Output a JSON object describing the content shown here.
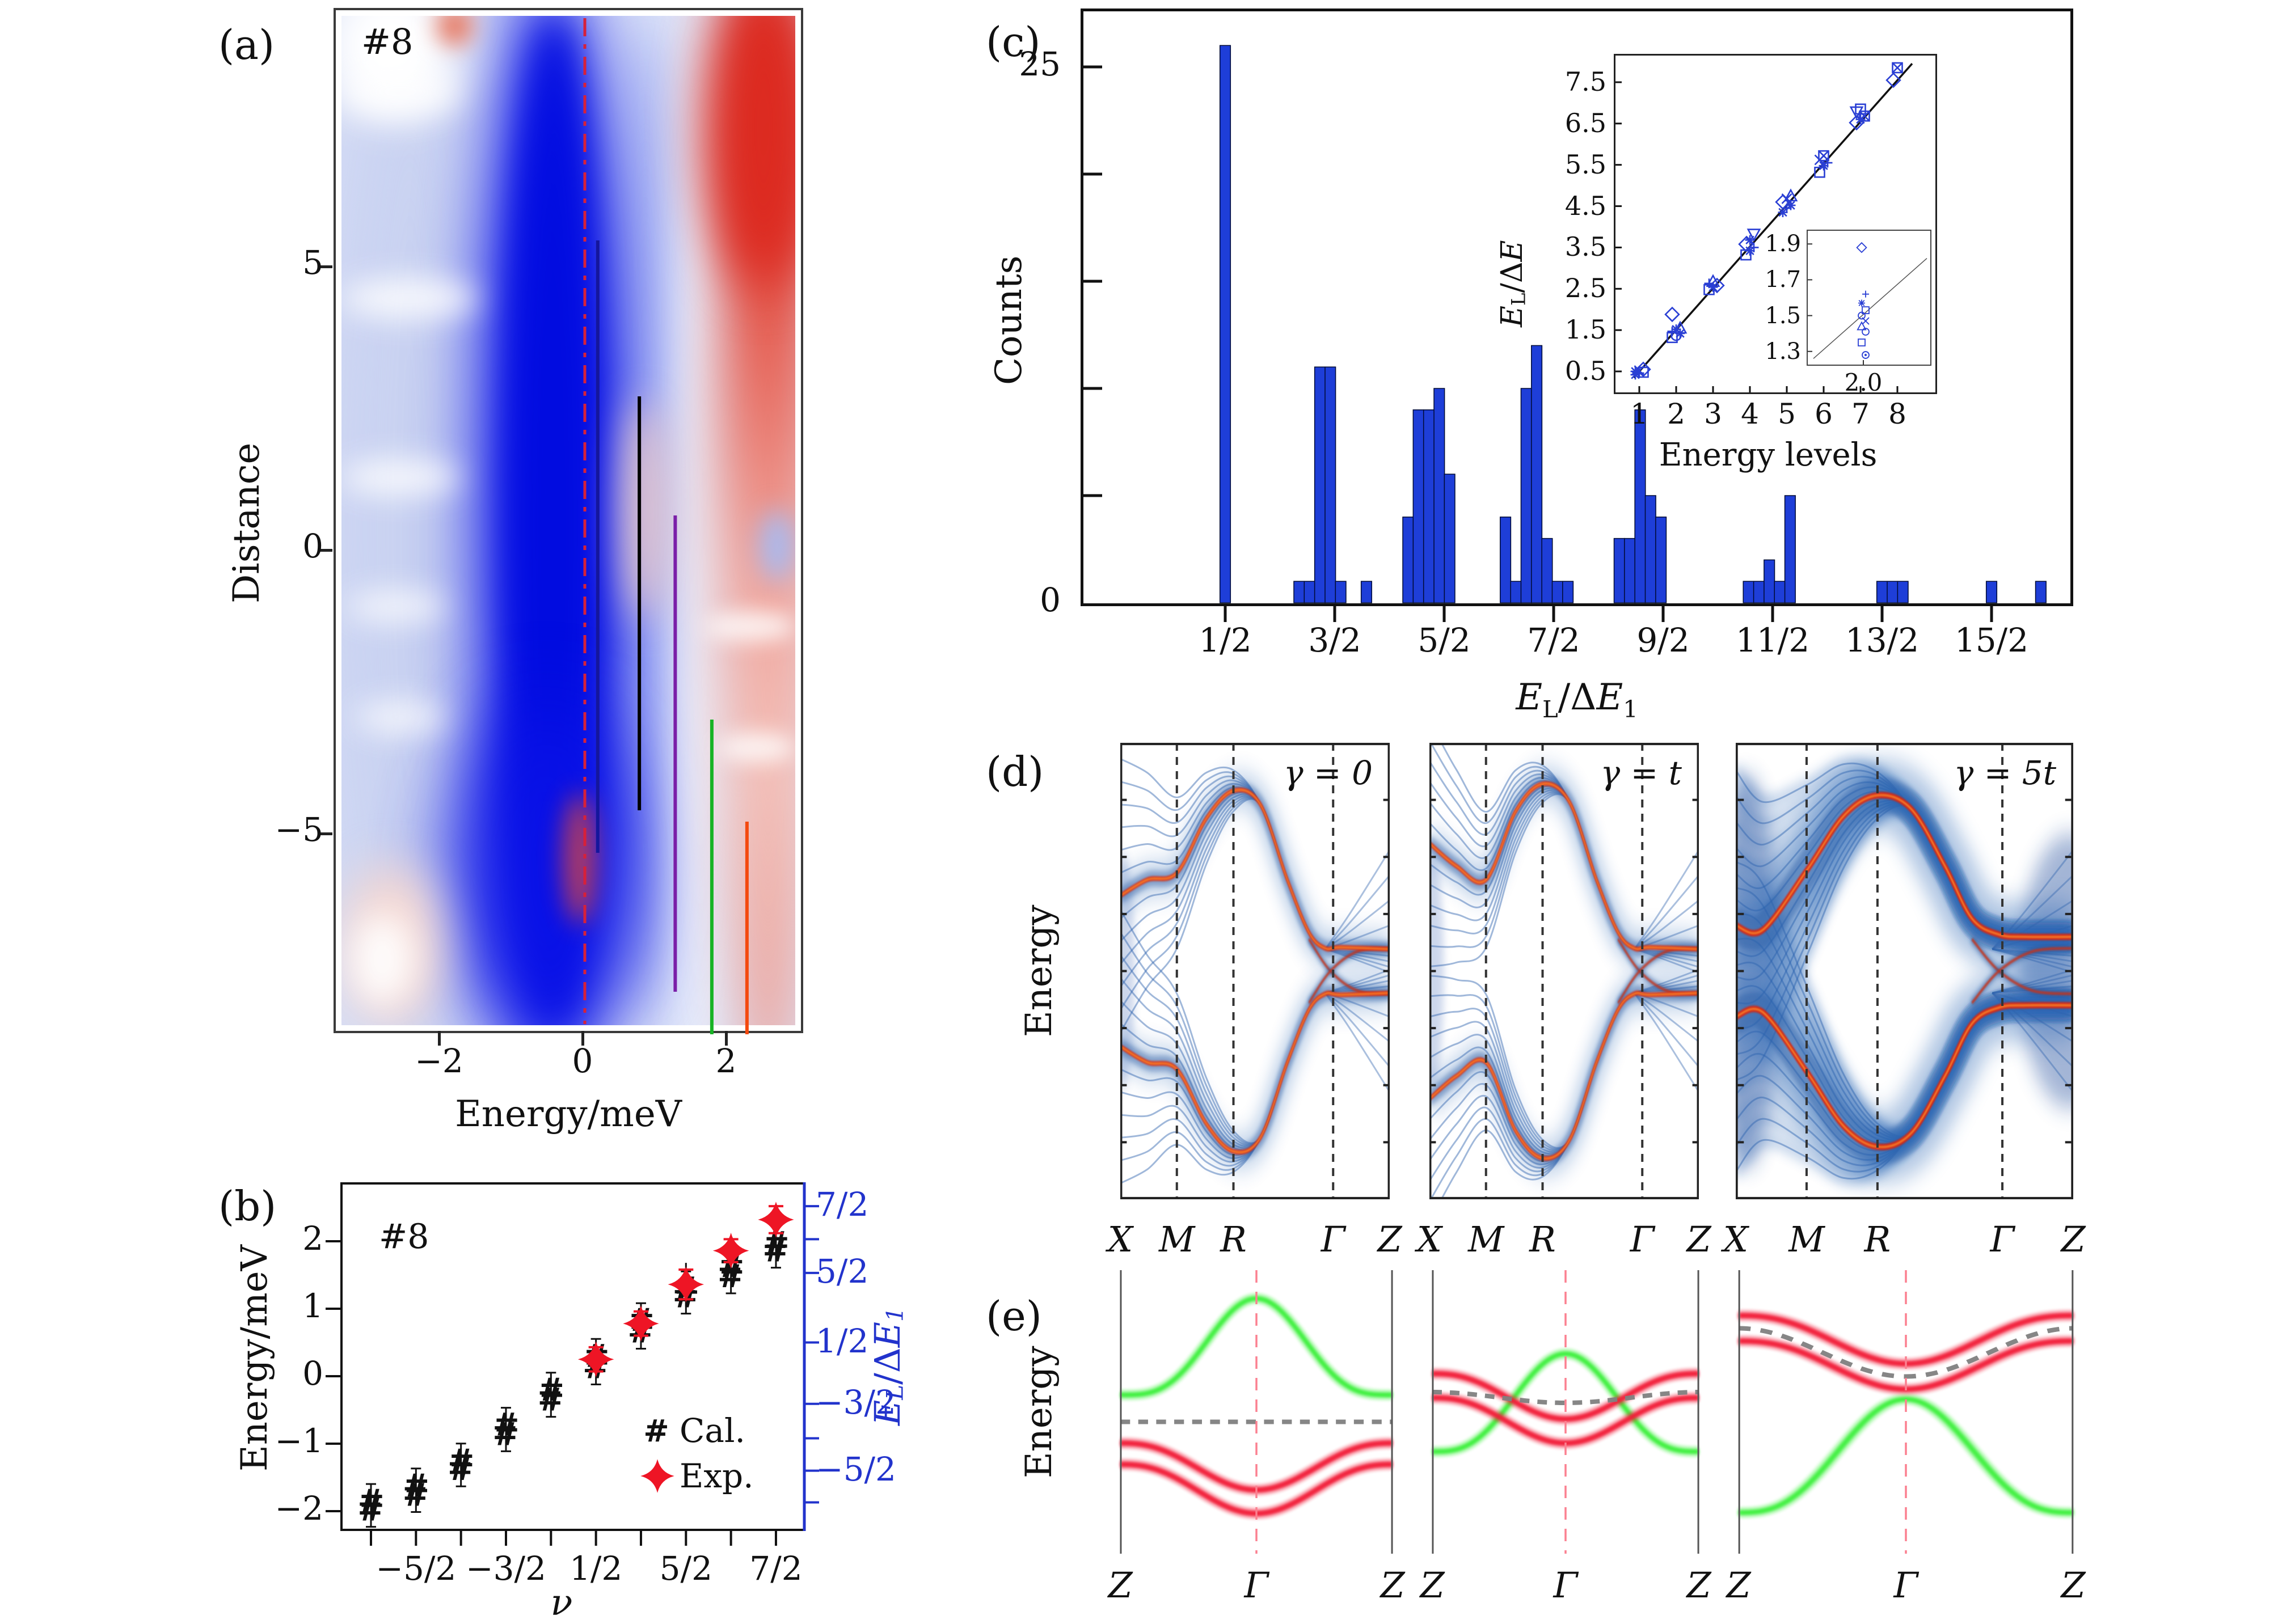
{
  "panels": {
    "a": {
      "label": "(a)",
      "tag": "#8",
      "xlabel": "Energy/meV",
      "ylabel": "Distance"
    },
    "b": {
      "label": "(b)",
      "tag": "#8",
      "xlabel": "ν",
      "ylabel": "Energy/meV",
      "legend": {
        "cal": "Cal.",
        "exp": "Exp."
      },
      "right_label": {
        "e1": "E",
        "s1": "L",
        "mid": "/Δ",
        "e2": "E",
        "s2": "1"
      }
    },
    "c": {
      "label": "(c)",
      "ylabel": "Counts",
      "xlabel": {
        "e1": "E",
        "s1": "L",
        "mid": "/Δ",
        "e2": "E",
        "s2": "1"
      },
      "inset": {
        "ylabel": {
          "e1": "E",
          "s1": "L",
          "mid": "/Δ",
          "e2": "E"
        },
        "xlabel": "Energy levels"
      }
    },
    "d": {
      "label": "(d)",
      "ylabel": "Energy",
      "gammas": [
        "γ = 0",
        "γ = t",
        "γ = 5t"
      ]
    },
    "e": {
      "label": "(e)",
      "ylabel": "Energy"
    }
  },
  "chart_data": [
    {
      "id": "a",
      "type": "heatmap",
      "panel_label": "(a)",
      "sample": "#8",
      "xlabel": "Energy/meV",
      "ylabel": "Distance",
      "xlim": [
        -3.4,
        3.07
      ],
      "ylim": [
        -8.5,
        9.6
      ],
      "xticks": [
        "−2",
        "0",
        "2"
      ],
      "xtick_vals": [
        -2,
        0,
        2
      ],
      "yticks": [
        "5",
        "0",
        "−5"
      ],
      "ytick_vals": [
        5,
        0,
        -5
      ],
      "colormap": "blue-white-red",
      "fermi_line": {
        "x": 0,
        "style": "dash-dot",
        "color": "#d6213a"
      },
      "level_lines": [
        {
          "x": 0.18,
          "y_top": 5.5,
          "y_bottom": -5.3,
          "color": "#15169c"
        },
        {
          "x": 0.76,
          "y_top": 2.75,
          "y_bottom": -4.55,
          "color": "#000000"
        },
        {
          "x": 1.26,
          "y_top": 0.65,
          "y_bottom": -7.75,
          "color": "#7a1fa8"
        },
        {
          "x": 1.77,
          "y_top": -2.95,
          "y_bottom": -8.5,
          "color": "#17b325"
        },
        {
          "x": 2.26,
          "y_top": -4.75,
          "y_bottom": -8.5,
          "color": "#f4490e"
        }
      ]
    },
    {
      "id": "b",
      "type": "scatter",
      "panel_label": "(b)",
      "sample": "#8",
      "xlabel": "ν",
      "ylabel": "Energy/meV",
      "right_ylabel": "EL/ΔE1",
      "ylim": [
        -2.35,
        2.75
      ],
      "yticks": [
        "2",
        "1",
        "0",
        "−1",
        "−2"
      ],
      "ytick_vals": [
        2,
        1,
        0,
        -1,
        -2
      ],
      "x_tick_count": 10,
      "x_labels": [
        {
          "text": "−5/2",
          "tick": 2
        },
        {
          "text": "−3/2",
          "tick": 4
        },
        {
          "text": "1/2",
          "tick": 6
        },
        {
          "text": "5/2",
          "tick": 8
        },
        {
          "text": "7/2",
          "tick": 10
        }
      ],
      "cal": {
        "name": "Cal.",
        "marker": "#",
        "color": "#111111",
        "pairs": [
          [
            -1.85,
            -1.98
          ],
          [
            -1.62,
            -1.76
          ],
          [
            -1.25,
            -1.38
          ],
          [
            -0.72,
            -0.86
          ],
          [
            -0.2,
            -0.35
          ],
          [
            0.13,
            0.3
          ],
          [
            0.66,
            0.83
          ],
          [
            1.18,
            1.3
          ],
          [
            1.48,
            1.63
          ],
          [
            1.86,
            1.97
          ]
        ]
      },
      "exp": {
        "name": "Exp.",
        "marker": "star4",
        "color": "#ee1525",
        "points": [
          {
            "tick": 6,
            "E": 0.25,
            "err": 0.18
          },
          {
            "tick": 7,
            "E": 0.78,
            "err": 0.18
          },
          {
            "tick": 8,
            "E": 1.36,
            "err": 0.22
          },
          {
            "tick": 9,
            "E": 1.86,
            "err": 0.17
          },
          {
            "tick": 10,
            "E": 2.32,
            "err": 0.2
          }
        ]
      },
      "cal_outlier_errbar": {
        "tick": 8,
        "from": 1.03,
        "to": 1.68
      },
      "right_ticks": [
        {
          "label": "7/2",
          "E": 2.52
        },
        {
          "label": "",
          "E": 2.03
        },
        {
          "label": "5/2",
          "E": 1.53
        },
        {
          "label": "1/2",
          "E": 0.5
        },
        {
          "label": "−3/2",
          "E": -0.41
        },
        {
          "label": "",
          "E": -0.92
        },
        {
          "label": "−5/2",
          "E": -1.4
        },
        {
          "label": "",
          "E": -1.87
        }
      ],
      "right_axis_color": "#2233cc"
    },
    {
      "id": "c",
      "type": "bar",
      "panel_label": "(c)",
      "ylabel": "Counts",
      "xlabel": "EL/ΔE1",
      "xlim": [
        -0.82,
        8.25
      ],
      "ylim": [
        0,
        27.8
      ],
      "yticks": [
        0,
        5,
        10,
        15,
        20,
        25
      ],
      "ytick_labels_shown": [
        "25",
        "0"
      ],
      "xticks": [
        0.5,
        1.5,
        2.5,
        3.5,
        4.5,
        5.5,
        6.5,
        7.5
      ],
      "xtick_labels": [
        "1/2",
        "3/2",
        "5/2",
        "7/2",
        "9/2",
        "11/2",
        "13/2",
        "15/2"
      ],
      "bar_width": 0.095,
      "bar_color": "#1e3ed8",
      "bars": [
        [
          0.5,
          26
        ],
        [
          1.175,
          1
        ],
        [
          1.27,
          1
        ],
        [
          1.365,
          11
        ],
        [
          1.46,
          11
        ],
        [
          1.555,
          1
        ],
        [
          1.79,
          1
        ],
        [
          2.17,
          4
        ],
        [
          2.265,
          9
        ],
        [
          2.36,
          9
        ],
        [
          2.455,
          10
        ],
        [
          2.55,
          6
        ],
        [
          3.06,
          4
        ],
        [
          3.155,
          1
        ],
        [
          3.25,
          10
        ],
        [
          3.345,
          12
        ],
        [
          3.44,
          3
        ],
        [
          3.535,
          1
        ],
        [
          3.63,
          1
        ],
        [
          4.1,
          3
        ],
        [
          4.195,
          3
        ],
        [
          4.29,
          9
        ],
        [
          4.385,
          5
        ],
        [
          4.48,
          4
        ],
        [
          5.28,
          1
        ],
        [
          5.375,
          1
        ],
        [
          5.47,
          2
        ],
        [
          5.565,
          1
        ],
        [
          5.66,
          5
        ],
        [
          6.5,
          1
        ],
        [
          6.595,
          1
        ],
        [
          6.69,
          1
        ],
        [
          7.5,
          1
        ],
        [
          7.95,
          1
        ]
      ],
      "inset": {
        "xlabel": "Energy levels",
        "ylabel": "EL/ΔE",
        "xticks": [
          1,
          2,
          3,
          4,
          5,
          6,
          7,
          8
        ],
        "yticks": [
          7.5,
          6.5,
          5.5,
          4.5,
          3.5,
          2.5,
          1.5,
          0.5
        ],
        "fit_line": {
          "x1": 0.85,
          "y1": 0.35,
          "x2": 8.4,
          "y2": 7.95
        },
        "marker_color": "#2a3fd4",
        "clusters": [
          {
            "x": 1,
            "points": [
              [
                0.42,
                "st"
              ],
              [
                0.46,
                "cr"
              ],
              [
                0.48,
                "sq"
              ],
              [
                0.5,
                "st"
              ],
              [
                0.52,
                "x"
              ],
              [
                0.55,
                "di"
              ]
            ]
          },
          {
            "x": 2,
            "points": [
              [
                1.32,
                "sq"
              ],
              [
                1.37,
                "ci"
              ],
              [
                1.42,
                "st"
              ],
              [
                1.47,
                "cr"
              ],
              [
                1.52,
                "st"
              ],
              [
                1.55,
                "tu"
              ],
              [
                1.88,
                "di"
              ]
            ]
          },
          {
            "x": 3,
            "points": [
              [
                2.48,
                "sq"
              ],
              [
                2.54,
                "st"
              ],
              [
                2.58,
                "di"
              ],
              [
                2.63,
                "cr"
              ],
              [
                2.68,
                "tu"
              ]
            ]
          },
          {
            "x": 4,
            "points": [
              [
                3.32,
                "sq"
              ],
              [
                3.42,
                "st"
              ],
              [
                3.5,
                "cr"
              ],
              [
                3.58,
                "di"
              ],
              [
                3.68,
                "st"
              ],
              [
                3.82,
                "td"
              ]
            ]
          },
          {
            "x": 5,
            "points": [
              [
                4.35,
                "st"
              ],
              [
                4.45,
                "cr"
              ],
              [
                4.52,
                "st"
              ],
              [
                4.6,
                "di"
              ],
              [
                4.68,
                "x"
              ],
              [
                4.75,
                "tu"
              ]
            ]
          },
          {
            "x": 6,
            "points": [
              [
                5.32,
                "sq"
              ],
              [
                5.48,
                "st"
              ],
              [
                5.55,
                "cr"
              ],
              [
                5.62,
                "x"
              ],
              [
                5.72,
                "bx"
              ]
            ]
          },
          {
            "x": 7,
            "points": [
              [
                6.52,
                "di"
              ],
              [
                6.6,
                "st"
              ],
              [
                6.68,
                "bx"
              ],
              [
                6.78,
                "td"
              ],
              [
                6.85,
                "sq"
              ]
            ]
          },
          {
            "x": 8,
            "points": [
              [
                7.55,
                "di"
              ],
              [
                7.85,
                "bx"
              ]
            ]
          }
        ],
        "subinset": {
          "xtick_label": "2.0",
          "yticks": [
            1.9,
            1.7,
            1.5,
            1.3
          ],
          "xlim": [
            1.75,
            2.3
          ],
          "ylim": [
            1.22,
            1.98
          ],
          "line": {
            "x1": 1.78,
            "y1": 1.26,
            "x2": 2.28,
            "y2": 1.82
          },
          "points": [
            [
              1.88,
              "di"
            ],
            [
              1.62,
              "cr"
            ],
            [
              1.57,
              "st"
            ],
            [
              1.53,
              "sq"
            ],
            [
              1.5,
              "ci"
            ],
            [
              1.47,
              "x"
            ],
            [
              1.44,
              "tu"
            ],
            [
              1.41,
              "ci"
            ],
            [
              1.35,
              "sq"
            ],
            [
              1.28,
              "cd"
            ]
          ]
        }
      }
    },
    {
      "id": "d",
      "type": "spectral_function",
      "panel_label": "(d)",
      "ylabel": "Energy",
      "kpoints": [
        "X",
        "M",
        "R",
        "Γ",
        "Z"
      ],
      "kpoint_fracs": [
        0,
        0.21,
        0.42,
        0.79,
        1
      ],
      "panels": [
        {
          "gamma": "γ = 0",
          "band_upper": [
            [
              0,
              0.335
            ],
            [
              0.1,
              0.3
            ],
            [
              0.21,
              0.285
            ],
            [
              0.32,
              0.165
            ],
            [
              0.42,
              0.105
            ],
            [
              0.52,
              0.135
            ],
            [
              0.62,
              0.3
            ],
            [
              0.7,
              0.415
            ],
            [
              0.76,
              0.45
            ],
            [
              0.82,
              0.448
            ],
            [
              1,
              0.452
            ]
          ],
          "fan_spread": 0.3,
          "cloud": 0.33
        },
        {
          "gamma": "γ = t",
          "band_upper": [
            [
              0,
              0.22
            ],
            [
              0.1,
              0.27
            ],
            [
              0.21,
              0.3
            ],
            [
              0.32,
              0.15
            ],
            [
              0.42,
              0.09
            ],
            [
              0.52,
              0.13
            ],
            [
              0.62,
              0.3
            ],
            [
              0.7,
              0.415
            ],
            [
              0.76,
              0.45
            ],
            [
              0.82,
              0.448
            ],
            [
              1,
              0.452
            ]
          ],
          "fan_spread": 0.27,
          "cloud": 0.4
        },
        {
          "gamma": "γ = 5t",
          "band_upper": [
            [
              0,
              0.4
            ],
            [
              0.08,
              0.41
            ],
            [
              0.21,
              0.28
            ],
            [
              0.32,
              0.16
            ],
            [
              0.42,
              0.115
            ],
            [
              0.52,
              0.145
            ],
            [
              0.62,
              0.27
            ],
            [
              0.7,
              0.385
            ],
            [
              0.78,
              0.42
            ],
            [
              0.86,
              0.425
            ],
            [
              1,
              0.425
            ]
          ],
          "fan_spread": 0.34,
          "cloud": 0.95
        }
      ]
    },
    {
      "id": "e",
      "type": "schematic_bands",
      "panel_label": "(e)",
      "ylabel": "Energy",
      "xlabels": [
        "Z",
        "Γ",
        "Z"
      ],
      "colors": {
        "green": "#3ef03c",
        "red": "#f21f38",
        "gray": "#7f7f7f",
        "gamma_line": "#fb8090"
      },
      "panels": [
        {
          "green": {
            "edge": 0.44,
            "peak": 0.1,
            "power": 1.7
          },
          "reds": [
            {
              "edge": 0.61,
              "dip": 0.775
            },
            {
              "edge": 0.685,
              "dip": 0.858
            }
          ],
          "gray": {
            "edge": 0.535,
            "mid": 0.535
          }
        },
        {
          "green": {
            "edge": 0.64,
            "peak": 0.295,
            "power": 1.5
          },
          "reds": [
            {
              "edge": 0.365,
              "dip": 0.525
            },
            {
              "edge": 0.45,
              "dip": 0.61
            }
          ],
          "gray": {
            "edge": 0.43,
            "mid": 0.468
          }
        },
        {
          "green": {
            "edge": 0.855,
            "peak": 0.455,
            "power": 1.4
          },
          "reds": [
            {
              "edge": 0.16,
              "dip": 0.33
            },
            {
              "edge": 0.25,
              "dip": 0.42
            }
          ],
          "gray": {
            "edge": 0.205,
            "mid": 0.375
          }
        }
      ]
    }
  ]
}
